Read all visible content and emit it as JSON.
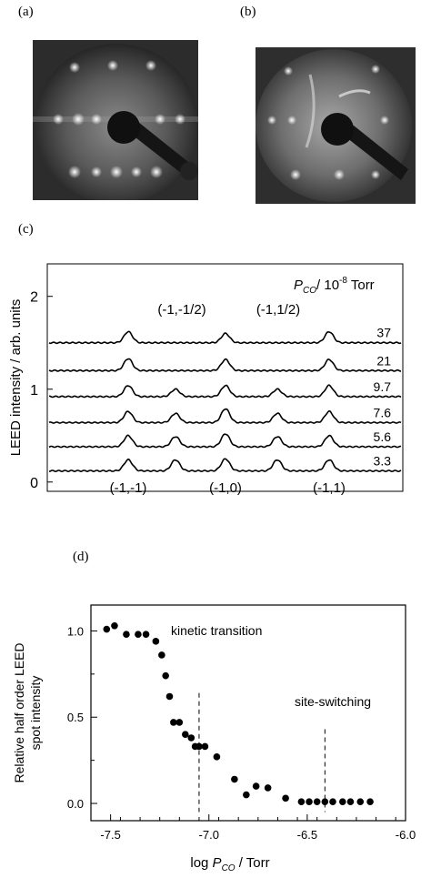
{
  "panels": {
    "a": {
      "label": "(a)"
    },
    "b": {
      "label": "(b)"
    },
    "c": {
      "label": "(c)"
    },
    "d": {
      "label": "(d)"
    }
  },
  "colors": {
    "ink": "#000000",
    "screen": "#2a2a2a",
    "spot": "#f4f4f4"
  },
  "chart_data": [
    {
      "panel": "c",
      "type": "line",
      "ylabel": "LEED intensity / arb. units",
      "yticks": [
        "0",
        "1",
        "2"
      ],
      "ylim": [
        -0.1,
        2.35
      ],
      "legend_title": {
        "symbol": "P",
        "subscript": "CO",
        "rest": "/ 10",
        "exp": "-8",
        "unit": " Torr"
      },
      "baseline_offsets": [
        0.12,
        0.38,
        0.64,
        0.92,
        1.2,
        1.5
      ],
      "series": [
        {
          "name": "3.3",
          "peaks": [
            0.12,
            0.12,
            0.13,
            0.12,
            0.12
          ]
        },
        {
          "name": "5.6",
          "peaks": [
            0.12,
            0.11,
            0.14,
            0.11,
            0.12
          ]
        },
        {
          "name": "7.6",
          "peaks": [
            0.12,
            0.1,
            0.15,
            0.1,
            0.12
          ]
        },
        {
          "name": "9.7",
          "peaks": [
            0.12,
            0.08,
            0.12,
            0.08,
            0.12
          ]
        },
        {
          "name": "21",
          "peaks": [
            0.13,
            0.0,
            0.12,
            0.0,
            0.12
          ]
        },
        {
          "name": "37",
          "peaks": [
            0.12,
            0.0,
            0.1,
            0.0,
            0.12
          ]
        }
      ],
      "peak_labels_bottom": [
        "(-1,-1)",
        "(-1,0)",
        "(-1,1)"
      ],
      "peak_labels_top": [
        "(-1,-1/2)",
        "(-1,1/2)"
      ]
    },
    {
      "panel": "d",
      "type": "scatter",
      "ylabel_lines": [
        "Relative half order LEED",
        "spot  intensity"
      ],
      "xlabel": {
        "prefix": "log  ",
        "symbol": "P",
        "subscript": "CO",
        "suffix": " / Torr"
      },
      "xlim": [
        -7.6,
        -6.0
      ],
      "ylim": [
        -0.1,
        1.15
      ],
      "xticks": [
        -7.5,
        -7.0,
        -6.5,
        -6.0
      ],
      "xtick_labels": [
        "-7.5",
        "-7.0",
        "-6.5",
        "-6.0"
      ],
      "yticks": [
        0.0,
        0.5,
        1.0
      ],
      "ytick_labels": [
        "0.0",
        "0.5",
        "1.0"
      ],
      "x": [
        -7.52,
        -7.48,
        -7.42,
        -7.36,
        -7.32,
        -7.27,
        -7.24,
        -7.22,
        -7.2,
        -7.18,
        -7.15,
        -7.12,
        -7.09,
        -7.07,
        -7.05,
        -7.02,
        -6.96,
        -6.87,
        -6.81,
        -6.76,
        -6.7,
        -6.61,
        -6.53,
        -6.49,
        -6.45,
        -6.41,
        -6.37,
        -6.32,
        -6.28,
        -6.23,
        -6.18
      ],
      "y": [
        1.01,
        1.03,
        0.98,
        0.98,
        0.98,
        0.94,
        0.86,
        0.74,
        0.62,
        0.47,
        0.47,
        0.4,
        0.38,
        0.33,
        0.33,
        0.33,
        0.27,
        0.14,
        0.05,
        0.1,
        0.09,
        0.03,
        0.01,
        0.01,
        0.01,
        0.01,
        0.01,
        0.01,
        0.01,
        0.01,
        0.01
      ],
      "annotations": [
        {
          "text": "kinetic transition",
          "x": -7.05
        },
        {
          "text": "site-switching",
          "x": -6.41
        }
      ]
    }
  ]
}
